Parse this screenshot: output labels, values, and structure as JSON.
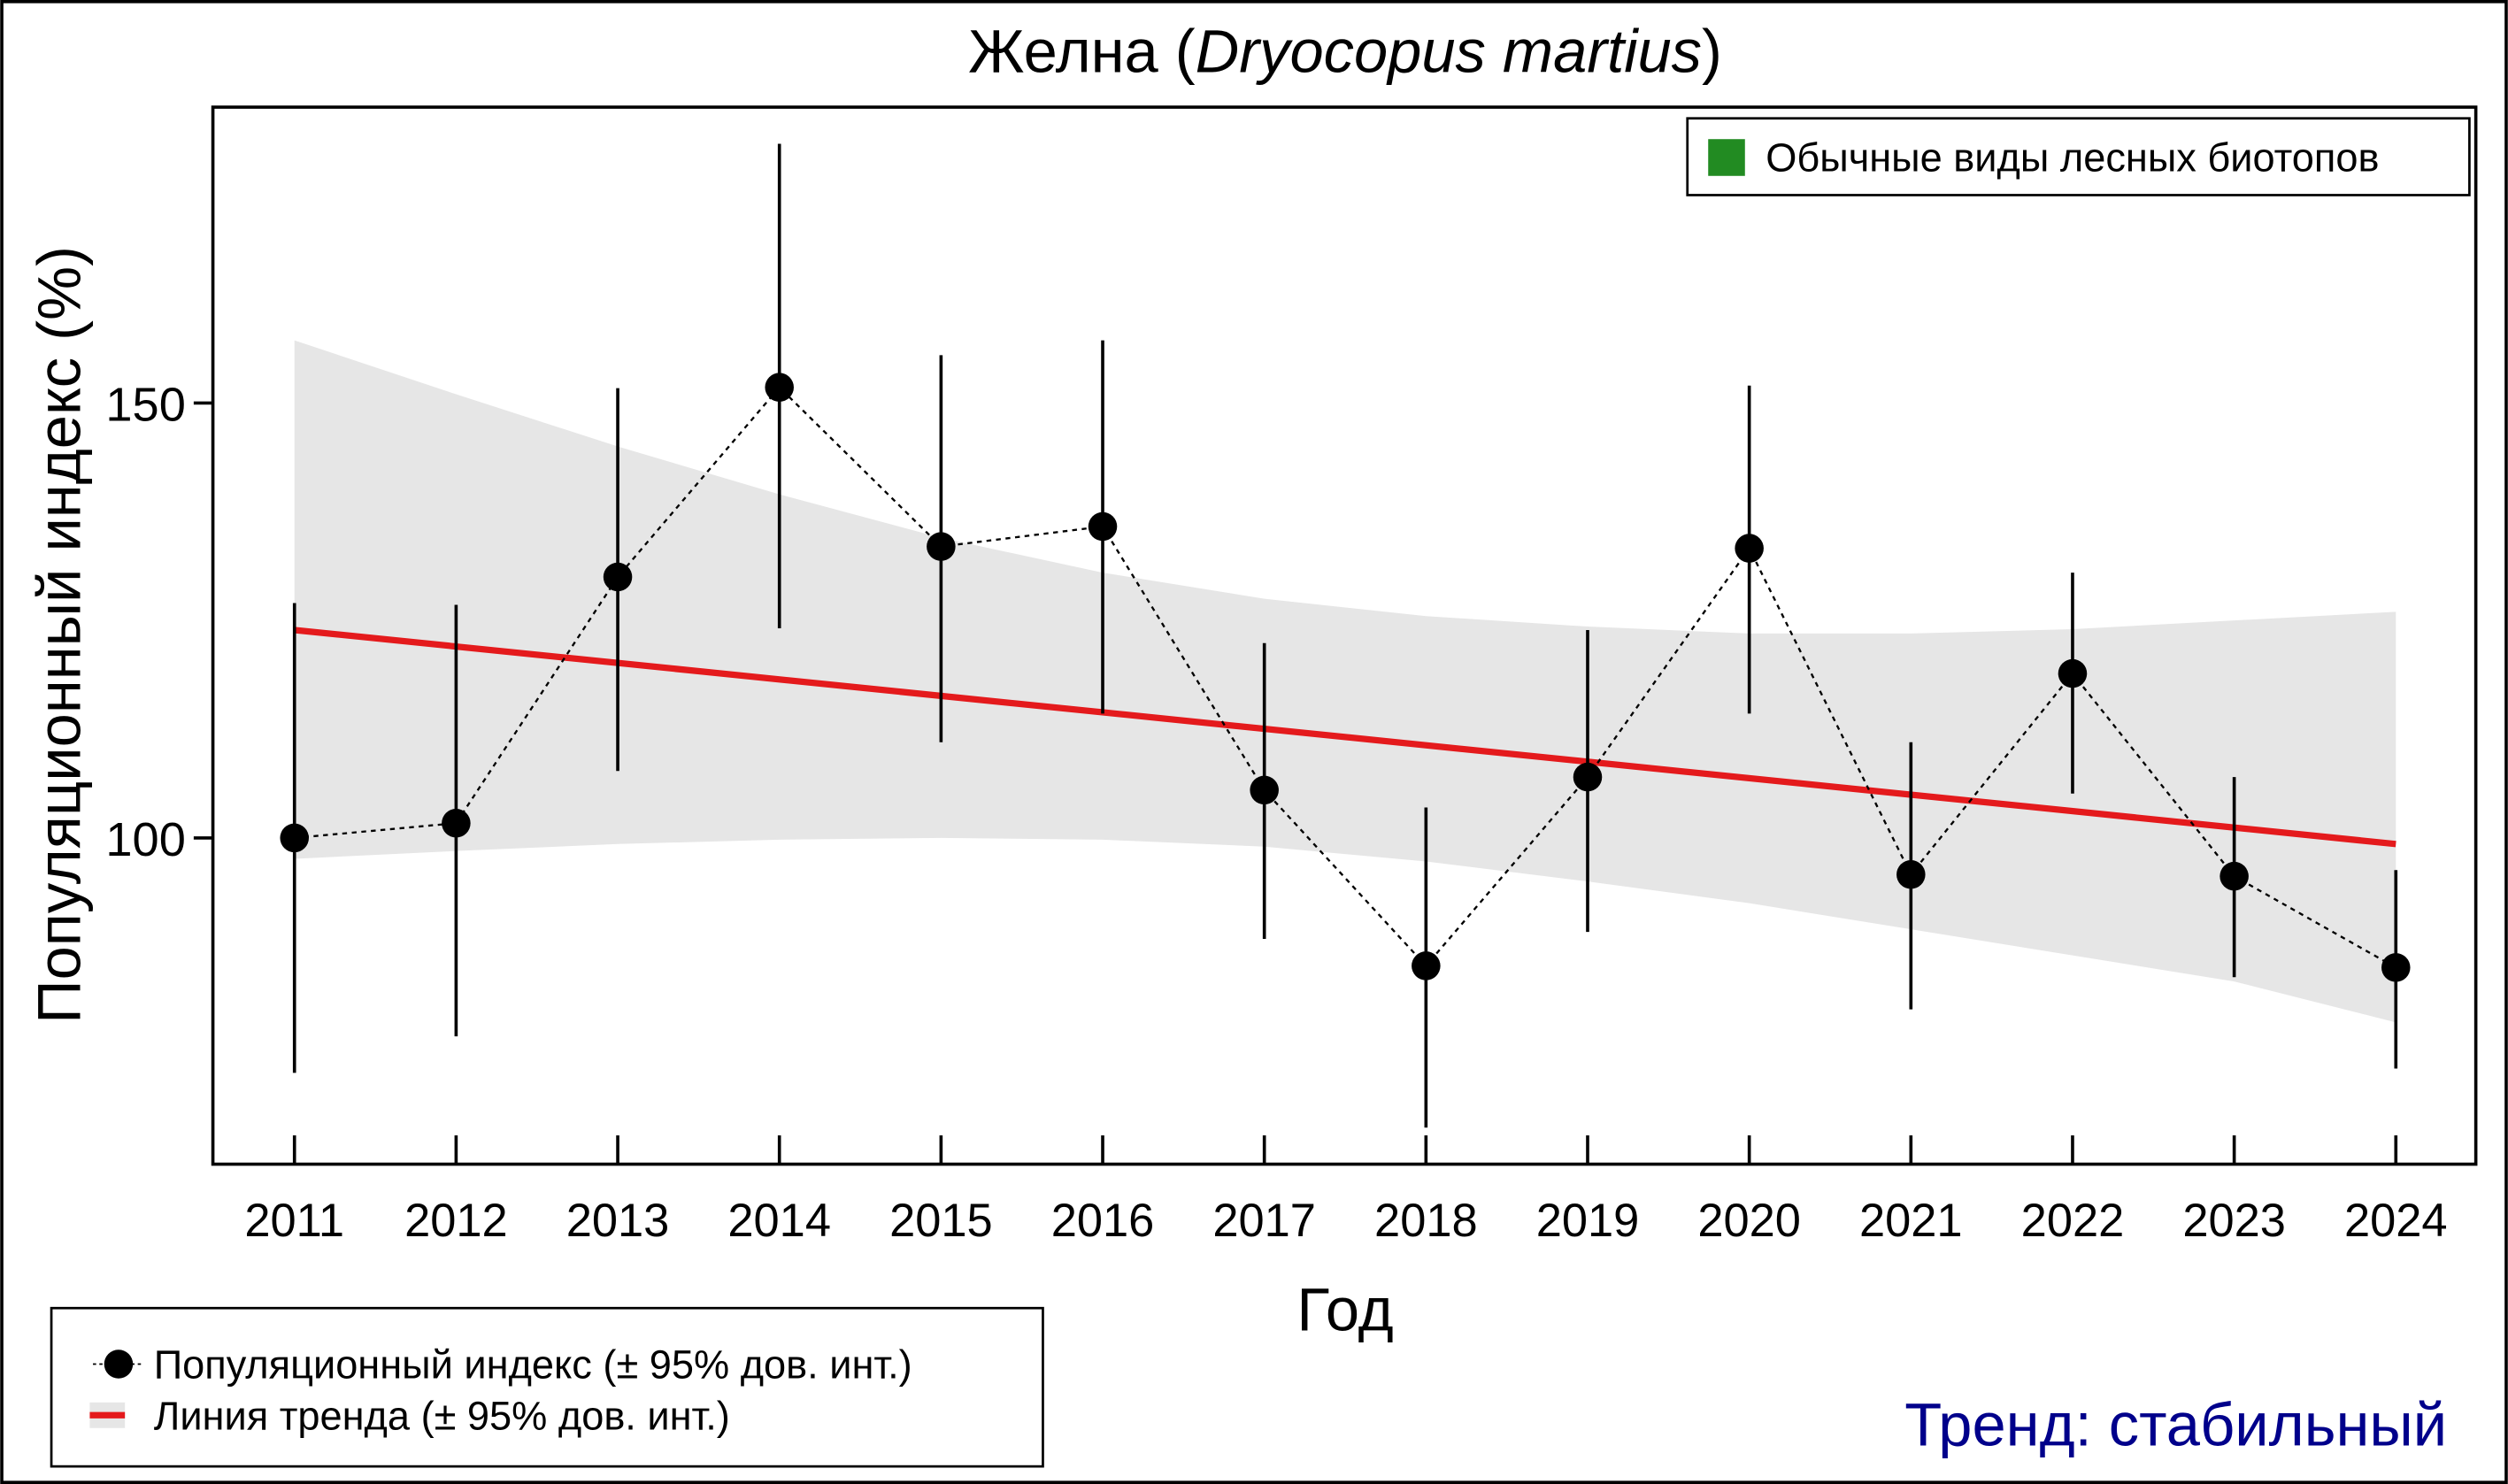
{
  "chart_data": {
    "type": "line",
    "title_main": "Желна (",
    "title_italic": "Dryocopus martius",
    "title_end": ")",
    "xlabel": "Год",
    "ylabel": "Популяционный индекс (%)",
    "x": [
      2011,
      2012,
      2013,
      2014,
      2015,
      2016,
      2017,
      2018,
      2019,
      2020,
      2021,
      2022,
      2023,
      2024
    ],
    "x_tick_labels": [
      "2011",
      "2012",
      "2013",
      "2014",
      "2015",
      "2016",
      "2017",
      "2018",
      "2019",
      "2020",
      "2021",
      "2022",
      "2023",
      "2024"
    ],
    "y_ticks": [
      100,
      150
    ],
    "y_tick_labels": [
      "100",
      "150"
    ],
    "ylim": [
      62.5,
      184
    ],
    "grid": false,
    "series": [
      {
        "name": "Популяционный индекс (± 95% дов. инт.)",
        "values": [
          100,
          101.7,
          130,
          151.8,
          133.5,
          135.8,
          105.5,
          85.3,
          107,
          133.3,
          95.8,
          118.9,
          95.6,
          85.1
        ],
        "lower": [
          73,
          77.2,
          107.7,
          124.1,
          111,
          114.3,
          88.4,
          66.7,
          89.2,
          114.3,
          80.3,
          105.1,
          84,
          73.5
        ],
        "upper": [
          127,
          126.8,
          151.7,
          179.8,
          155.5,
          157.2,
          122.4,
          103.5,
          123.9,
          152,
          111,
          130.5,
          107,
          96.3
        ],
        "color": "#000000"
      },
      {
        "name": "Линия тренда (± 95% дов. инт.)",
        "trend_start": 123.9,
        "trend_end": 99.3,
        "band_upper": [
          157.2,
          151,
          145,
          139.5,
          134.5,
          130.5,
          127.5,
          125.5,
          124.3,
          123.5,
          123.5,
          124,
          125,
          126
        ],
        "band_lower": [
          97.6,
          98.5,
          99.3,
          99.8,
          100,
          99.8,
          99,
          97.3,
          95,
          92.5,
          89.5,
          86.5,
          83.5,
          78.8
        ],
        "color": "#e41a1c",
        "band_color": "#e6e6e6"
      }
    ],
    "group_legend": {
      "label": "Обычные виды лесных биотопов",
      "color": "#228b22",
      "position": "top-right"
    },
    "legend_position": "bottom-left",
    "trend_text": "Тренд: стабильный",
    "trend_text_color": "#00008b"
  }
}
